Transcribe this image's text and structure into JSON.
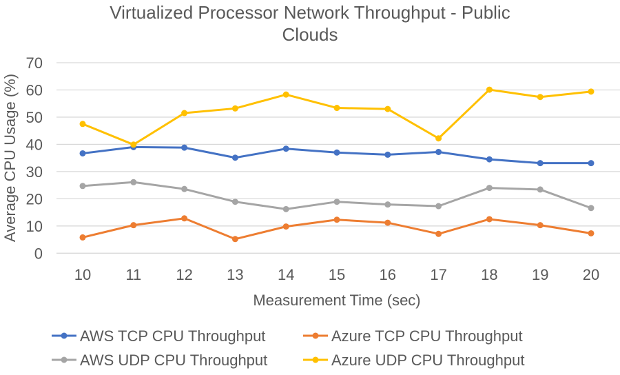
{
  "chart_data": {
    "type": "line",
    "title": "Virtualized Processor Network Throughput - Public Clouds",
    "title_lines": [
      "Virtualized Processor Network Throughput - Public",
      "Clouds"
    ],
    "xlabel": "Measurement Time (sec)",
    "ylabel": "Average CPU Usage (%)",
    "ylim": [
      0,
      70
    ],
    "yticks": [
      0,
      10,
      20,
      30,
      40,
      50,
      60,
      70
    ],
    "categories": [
      "10",
      "11",
      "12",
      "13",
      "14",
      "15",
      "16",
      "17",
      "18",
      "19",
      "20"
    ],
    "grid": true,
    "legend": "bottom",
    "series": [
      {
        "name": "AWS TCP CPU Throughput",
        "color": "#4472C4",
        "values": [
          36.7,
          39.0,
          38.8,
          35.1,
          38.4,
          37.0,
          36.2,
          37.2,
          34.5,
          33.1,
          33.1
        ]
      },
      {
        "name": "Azure TCP CPU Throughput",
        "color": "#ED7D31",
        "values": [
          5.8,
          10.3,
          12.8,
          5.2,
          9.8,
          12.3,
          11.2,
          7.1,
          12.5,
          10.3,
          7.3
        ]
      },
      {
        "name": "AWS UDP CPU Throughput",
        "color": "#A5A5A5",
        "values": [
          24.7,
          26.1,
          23.6,
          18.9,
          16.2,
          18.9,
          17.9,
          17.3,
          24.0,
          23.4,
          16.6
        ]
      },
      {
        "name": "Azure UDP CPU Throughput",
        "color": "#FFC000",
        "values": [
          47.5,
          39.9,
          51.5,
          53.2,
          58.3,
          53.4,
          53.0,
          42.2,
          60.1,
          57.4,
          59.4
        ]
      }
    ]
  }
}
